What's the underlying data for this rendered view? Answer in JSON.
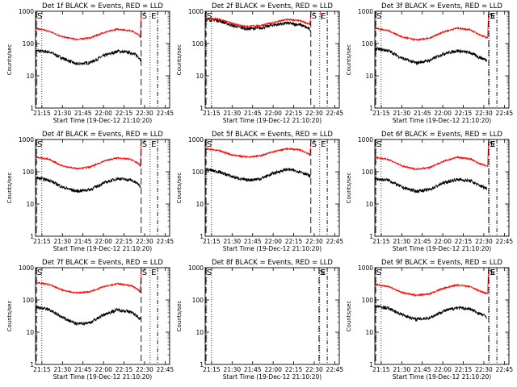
{
  "figure": {
    "xtick_labels": [
      "21:15",
      "21:30",
      "21:45",
      "22:00",
      "22:15",
      "22:30",
      "22:45"
    ],
    "ytick_labels": [
      "1",
      "10",
      "100",
      "1000"
    ],
    "xlabel": "Start Time (19-Dec-12 21:10:20)",
    "ylabel": "Counts/sec",
    "marker_S": "S",
    "marker_E": "E",
    "colors": {
      "events": "#000000",
      "lld": "#ff0000",
      "axes": "#000000",
      "background": "#ffffff"
    }
  },
  "chart_data": [
    {
      "type": "line",
      "title": "Det 1f BLACK = Events, RED = LLD",
      "x_unit": "minutes after 21:10:20",
      "xlim": [
        0,
        98
      ],
      "yscale": "log",
      "ylim": [
        1,
        1000
      ],
      "marker_lines": {
        "S": 77.2,
        "E": 89.2
      },
      "dotted_lines": [
        4.6,
        83.7
      ],
      "series": [
        {
          "name": "Events",
          "color": "#000000",
          "x": [
            0,
            10,
            20,
            30,
            40,
            50,
            60,
            70,
            75,
            76,
            77
          ],
          "y": [
            60,
            55,
            35,
            23,
            26,
            42,
            58,
            52,
            40,
            35,
            32
          ]
        },
        {
          "name": "LLD",
          "color": "#ff0000",
          "x": [
            0,
            10,
            20,
            30,
            40,
            50,
            60,
            70,
            75,
            76,
            77
          ],
          "y": [
            300,
            240,
            160,
            135,
            150,
            220,
            280,
            250,
            190,
            170,
            160
          ]
        }
      ],
      "spike": {
        "x": [
          76.5,
          77.2,
          77.8
        ],
        "y": [
          160,
          900,
          1000
        ]
      }
    },
    {
      "type": "line",
      "title": "Det 2f BLACK = Events, RED = LLD",
      "x_unit": "minutes after 21:10:20",
      "xlim": [
        0,
        98
      ],
      "yscale": "log",
      "ylim": [
        1,
        1000
      ],
      "marker_lines": {
        "S": 77.2,
        "E": 89.2
      },
      "dotted_lines": [
        4.6,
        83.7
      ],
      "series": [
        {
          "name": "Events",
          "color": "#000000",
          "x": [
            0,
            10,
            20,
            30,
            40,
            50,
            60,
            70,
            75,
            76,
            77
          ],
          "y": [
            560,
            520,
            360,
            290,
            300,
            380,
            430,
            380,
            300,
            280,
            270
          ]
        },
        {
          "name": "LLD",
          "color": "#ff0000",
          "x": [
            0,
            10,
            20,
            30,
            40,
            50,
            60,
            70,
            75,
            76,
            77
          ],
          "y": [
            600,
            570,
            420,
            340,
            360,
            450,
            560,
            500,
            420,
            400,
            380
          ]
        }
      ],
      "spike": {
        "x": [
          76.5,
          77.2,
          77.8,
          84,
          85
        ],
        "y": [
          380,
          900,
          1000,
          1000,
          550
        ]
      }
    },
    {
      "type": "line",
      "title": "Det 3f BLACK = Events, RED = LLD",
      "x_unit": "minutes after 21:10:20",
      "xlim": [
        0,
        98
      ],
      "yscale": "log",
      "ylim": [
        1,
        1000
      ],
      "marker_lines": {
        "S": 83.2,
        "E": 89.2
      },
      "dotted_lines": [
        4.6,
        83.7
      ],
      "series": [
        {
          "name": "Events",
          "color": "#000000",
          "x": [
            0,
            10,
            20,
            30,
            40,
            50,
            60,
            70,
            75,
            80,
            82
          ],
          "y": [
            70,
            60,
            35,
            25,
            30,
            48,
            60,
            52,
            40,
            33,
            30
          ]
        },
        {
          "name": "LLD",
          "color": "#ff0000",
          "x": [
            0,
            10,
            20,
            30,
            40,
            50,
            60,
            70,
            75,
            80,
            82
          ],
          "y": [
            300,
            250,
            160,
            130,
            145,
            230,
            300,
            270,
            200,
            165,
            150
          ]
        }
      ],
      "spike": {
        "x": [
          82.5,
          83.0,
          83.5
        ],
        "y": [
          150,
          900,
          1000
        ]
      }
    },
    {
      "type": "line",
      "title": "Det 4f BLACK = Events, RED = LLD",
      "x_unit": "minutes after 21:10:20",
      "xlim": [
        0,
        98
      ],
      "yscale": "log",
      "ylim": [
        1,
        1000
      ],
      "marker_lines": {
        "S": 77.2,
        "E": 89.2
      },
      "dotted_lines": [
        4.6,
        83.7
      ],
      "series": [
        {
          "name": "Events",
          "color": "#000000",
          "x": [
            0,
            10,
            20,
            30,
            40,
            50,
            60,
            70,
            75,
            76,
            77
          ],
          "y": [
            65,
            55,
            33,
            25,
            28,
            45,
            62,
            55,
            42,
            36,
            33
          ]
        },
        {
          "name": "LLD",
          "color": "#ff0000",
          "x": [
            0,
            10,
            20,
            30,
            40,
            50,
            60,
            70,
            75,
            76,
            77
          ],
          "y": [
            290,
            240,
            150,
            125,
            140,
            215,
            270,
            240,
            180,
            160,
            150
          ]
        }
      ],
      "spike": {
        "x": [
          76.5,
          77.2,
          77.8
        ],
        "y": [
          150,
          900,
          1000
        ]
      }
    },
    {
      "type": "line",
      "title": "Det 5f BLACK = Events, RED = LLD",
      "x_unit": "minutes after 21:10:20",
      "xlim": [
        0,
        98
      ],
      "yscale": "log",
      "ylim": [
        1,
        1000
      ],
      "marker_lines": {
        "S": 77.2,
        "E": 89.2
      },
      "dotted_lines": [
        4.6,
        83.7
      ],
      "series": [
        {
          "name": "Events",
          "color": "#000000",
          "x": [
            0,
            10,
            20,
            30,
            40,
            50,
            60,
            70,
            75,
            76,
            77
          ],
          "y": [
            120,
            100,
            70,
            55,
            60,
            90,
            120,
            100,
            80,
            75,
            70
          ]
        },
        {
          "name": "LLD",
          "color": "#ff0000",
          "x": [
            0,
            10,
            20,
            30,
            40,
            50,
            60,
            70,
            75,
            76,
            77
          ],
          "y": [
            520,
            450,
            330,
            290,
            310,
            420,
            520,
            470,
            370,
            340,
            330
          ]
        }
      ],
      "spike": {
        "x": [
          76.5,
          77.2,
          77.8
        ],
        "y": [
          330,
          900,
          1000
        ]
      }
    },
    {
      "type": "line",
      "title": "Det 6f BLACK = Events, RED = LLD",
      "x_unit": "minutes after 21:10:20",
      "xlim": [
        0,
        98
      ],
      "yscale": "log",
      "ylim": [
        1,
        1000
      ],
      "marker_lines": {
        "S": 83.2,
        "E": 89.2
      },
      "dotted_lines": [
        4.6,
        83.7
      ],
      "series": [
        {
          "name": "Events",
          "color": "#000000",
          "x": [
            0,
            10,
            20,
            30,
            40,
            50,
            60,
            70,
            75,
            80,
            82
          ],
          "y": [
            60,
            55,
            33,
            25,
            28,
            45,
            58,
            52,
            40,
            33,
            30
          ]
        },
        {
          "name": "LLD",
          "color": "#ff0000",
          "x": [
            0,
            10,
            20,
            30,
            40,
            50,
            60,
            70,
            75,
            80,
            82
          ],
          "y": [
            280,
            240,
            150,
            120,
            135,
            210,
            280,
            250,
            190,
            160,
            145
          ]
        }
      ],
      "spike": {
        "x": [
          82.5,
          83.0,
          83.5
        ],
        "y": [
          145,
          900,
          1000
        ]
      }
    },
    {
      "type": "line",
      "title": "Det 7f BLACK = Events, RED = LLD",
      "x_unit": "minutes after 21:10:20",
      "xlim": [
        0,
        98
      ],
      "yscale": "log",
      "ylim": [
        1,
        1000
      ],
      "marker_lines": {
        "S": 77.2,
        "E": 89.2
      },
      "dotted_lines": [
        4.6,
        83.7
      ],
      "series": [
        {
          "name": "Events",
          "color": "#000000",
          "x": [
            0,
            10,
            20,
            30,
            40,
            50,
            60,
            70,
            75,
            76,
            77
          ],
          "y": [
            60,
            50,
            28,
            18,
            20,
            35,
            50,
            42,
            30,
            27,
            25
          ]
        },
        {
          "name": "LLD",
          "color": "#ff0000",
          "x": [
            0,
            10,
            20,
            30,
            40,
            50,
            60,
            70,
            75,
            76,
            77
          ],
          "y": [
            350,
            300,
            200,
            165,
            180,
            260,
            320,
            280,
            210,
            185,
            175
          ]
        }
      ],
      "spike": {
        "x": [
          76.5,
          77.2,
          77.8
        ],
        "y": [
          175,
          900,
          1000
        ]
      }
    },
    {
      "type": "line",
      "title": "Det 8f BLACK = Events, RED = LLD",
      "x_unit": "minutes after 21:10:20",
      "xlim": [
        0,
        98
      ],
      "yscale": "log",
      "ylim": [
        1,
        1000
      ],
      "marker_lines": {
        "S": 83.2,
        "E": 89.2
      },
      "dotted_lines": [
        4.6,
        83.7
      ],
      "series": []
    },
    {
      "type": "line",
      "title": "Det 9f BLACK = Events, RED = LLD",
      "x_unit": "minutes after 21:10:20",
      "xlim": [
        0,
        98
      ],
      "yscale": "log",
      "ylim": [
        1,
        1000
      ],
      "marker_lines": {
        "S": 83.2,
        "E": 89.2
      },
      "dotted_lines": [
        4.6,
        83.7
      ],
      "series": [
        {
          "name": "Events",
          "color": "#000000",
          "x": [
            0,
            10,
            20,
            30,
            40,
            50,
            60,
            70,
            75,
            80,
            82
          ],
          "y": [
            65,
            55,
            35,
            25,
            28,
            45,
            58,
            52,
            40,
            33,
            30
          ]
        },
        {
          "name": "LLD",
          "color": "#ff0000",
          "x": [
            0,
            10,
            20,
            30,
            40,
            50,
            60,
            70,
            75,
            80,
            82
          ],
          "y": [
            300,
            260,
            170,
            140,
            155,
            230,
            290,
            260,
            200,
            170,
            155
          ]
        }
      ],
      "spike": {
        "x": [
          82.5,
          83.0,
          83.5
        ],
        "y": [
          155,
          900,
          1000
        ]
      }
    }
  ]
}
